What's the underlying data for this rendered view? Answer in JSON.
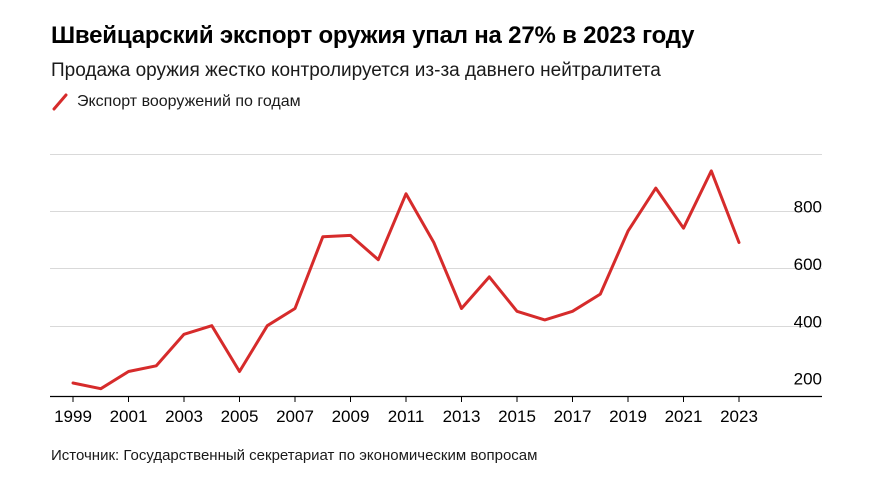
{
  "title": "Швейцарский экспорт оружия упал на 27% в 2023 году",
  "subtitle": "Продажа оружия жестко контролируется из-за давнего нейтралитета",
  "legend": {
    "label": "Экспорт вооружений по годам",
    "icon": "red-line-icon"
  },
  "source": "Источник: Государственный секретариат по экономическим вопросам",
  "colors": {
    "line": "#d62b2b",
    "grid": "#d9d9d9",
    "axis": "#000000"
  },
  "chart_data": {
    "type": "line",
    "title": "Швейцарский экспорт оружия упал на 27% в 2023 году",
    "subtitle": "Продажа оружия жестко контролируется из-за давнего нейтралитета",
    "xlabel": "",
    "ylabel": "",
    "x": [
      1999,
      2000,
      2001,
      2002,
      2003,
      2004,
      2005,
      2006,
      2007,
      2008,
      2009,
      2010,
      2011,
      2012,
      2013,
      2014,
      2015,
      2016,
      2017,
      2018,
      2019,
      2020,
      2021,
      2022,
      2023
    ],
    "series": [
      {
        "name": "Экспорт вооружений по годам",
        "values": [
          200,
          180,
          240,
          260,
          370,
          400,
          240,
          400,
          460,
          710,
          715,
          630,
          860,
          690,
          460,
          570,
          450,
          420,
          450,
          510,
          730,
          880,
          740,
          940,
          690
        ]
      }
    ],
    "x_tick_labels": [
      "1999",
      "2001",
      "2003",
      "2005",
      "2007",
      "2009",
      "2011",
      "2013",
      "2015",
      "2017",
      "2019",
      "2021",
      "2023"
    ],
    "y_tick_values": [
      200,
      400,
      600,
      800
    ],
    "y_tick_labels": [
      "200",
      "400",
      "600",
      "800"
    ],
    "xlim": [
      1999,
      2023
    ],
    "ylim": [
      130,
      1000
    ],
    "grid": true,
    "y_axis_side": "right",
    "legend_position": "top-left"
  }
}
